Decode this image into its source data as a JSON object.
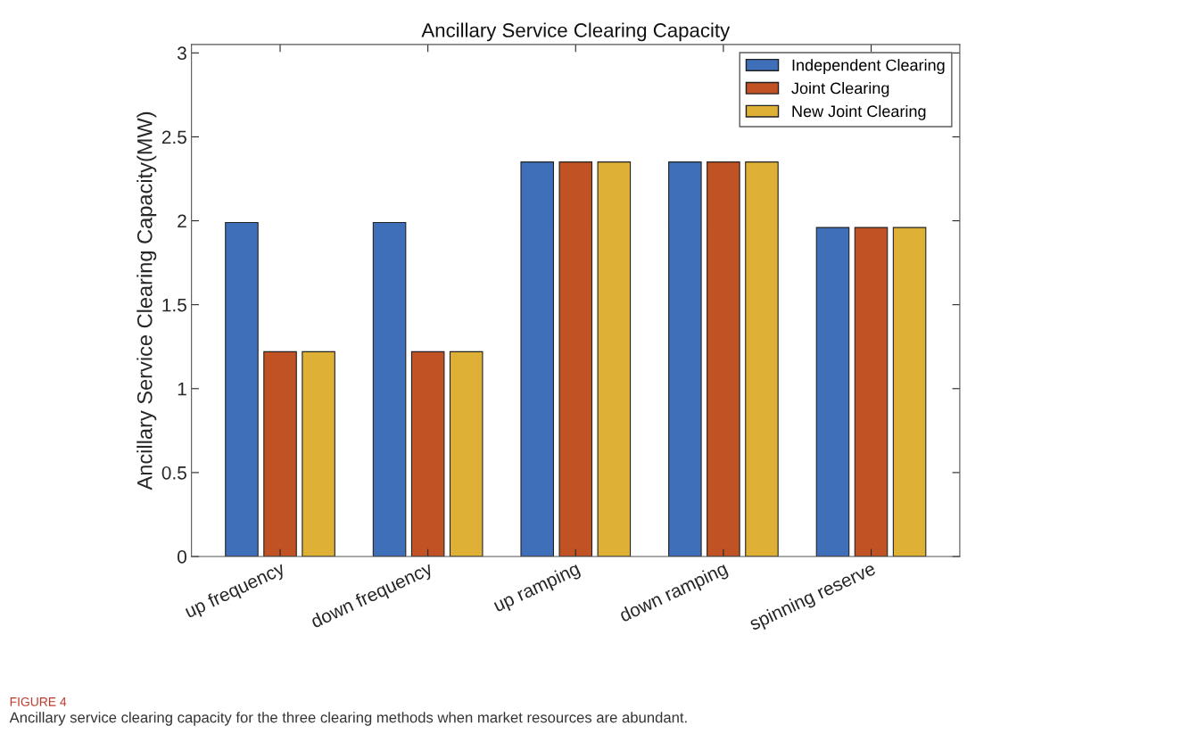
{
  "chart_data": {
    "type": "bar",
    "title": "Ancillary Service Clearing Capacity",
    "ylabel": "Ancillary Service Clearing Capacity(MW)",
    "categories": [
      "up frequency",
      "down frequency",
      "up ramping",
      "down ramping",
      "spinning reserve"
    ],
    "series": [
      {
        "name": "Independent Clearing",
        "color": "#3f6fb8",
        "values": [
          1.99,
          1.99,
          2.35,
          2.35,
          1.96
        ]
      },
      {
        "name": "Joint Clearing",
        "color": "#c05223",
        "values": [
          1.22,
          1.22,
          2.35,
          2.35,
          1.96
        ]
      },
      {
        "name": "New Joint Clearing",
        "color": "#deb035",
        "values": [
          1.22,
          1.22,
          2.35,
          2.35,
          1.96
        ]
      }
    ],
    "ylim": [
      0,
      3.05
    ],
    "yticks": [
      0,
      0.5,
      1,
      1.5,
      2,
      2.5,
      3
    ],
    "grid": false,
    "legend": "top right",
    "annotations": [
      "FIGURE 4",
      "Ancillary service clearing capacity for the three clearing methods when market resources are abundant."
    ]
  }
}
